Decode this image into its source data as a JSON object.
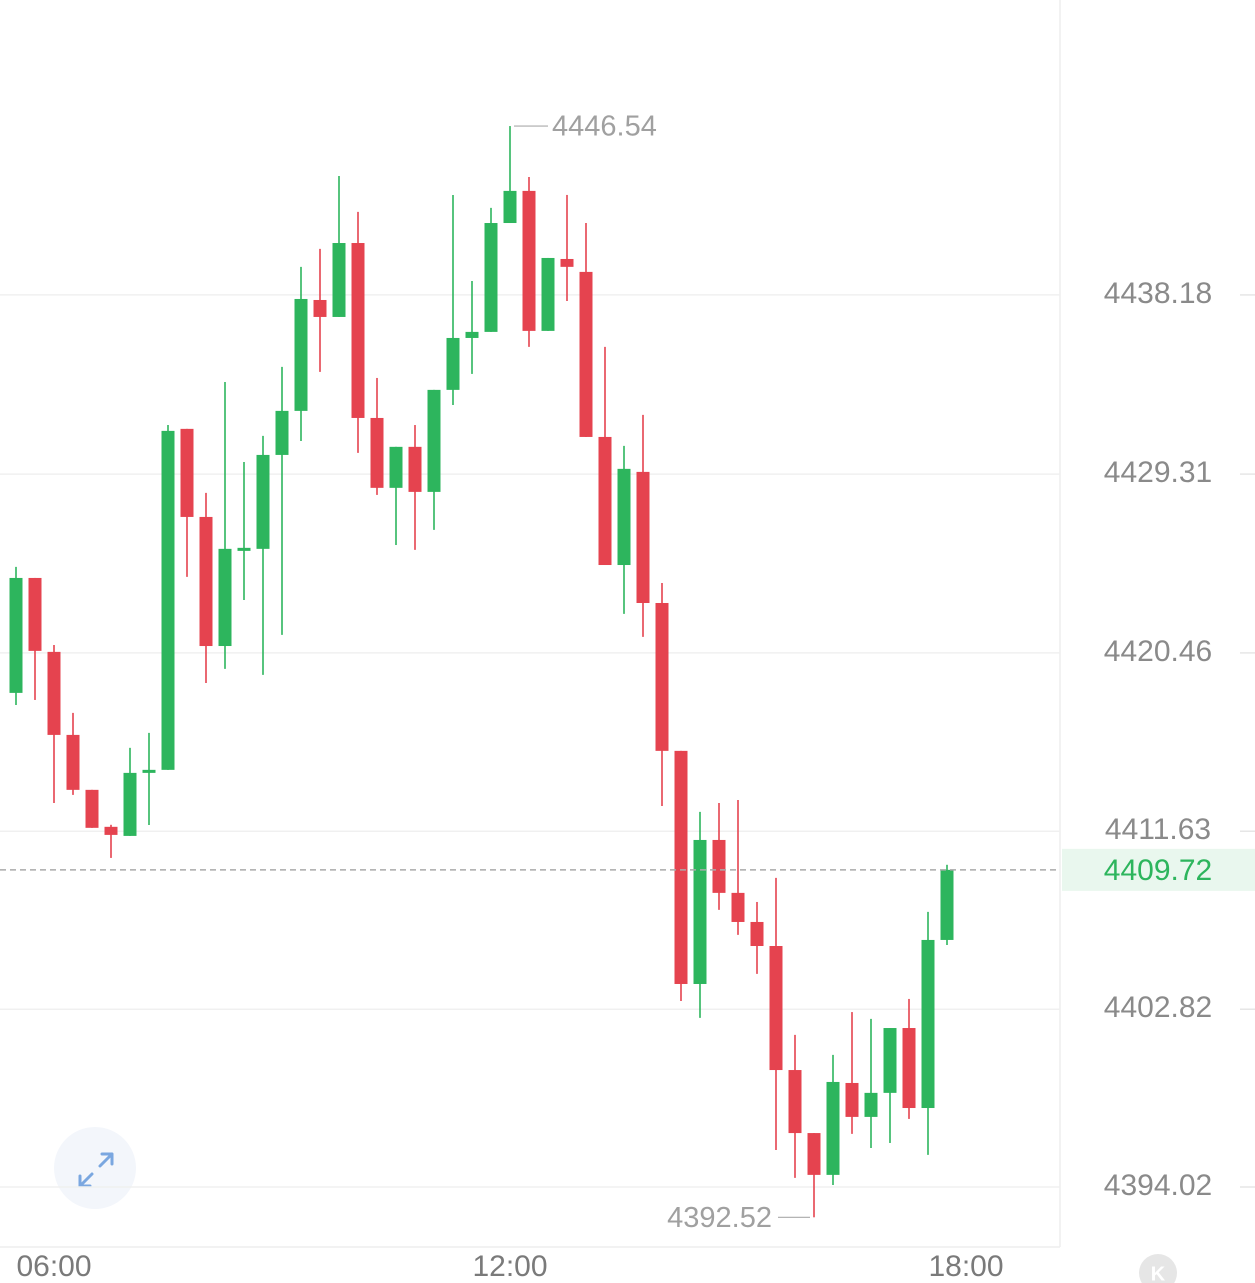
{
  "chart_data": {
    "type": "candlestick",
    "categories": [
      null,
      null,
      "06:00",
      null,
      null,
      null,
      null,
      null,
      null,
      null,
      null,
      null,
      null,
      null,
      null,
      null,
      null,
      null,
      null,
      null,
      null,
      null,
      null,
      null,
      null,
      null,
      "12:00",
      null,
      null,
      null,
      null,
      null,
      null,
      null,
      null,
      null,
      null,
      null,
      null,
      null,
      null,
      null,
      null,
      null,
      null,
      null,
      null,
      null,
      null,
      null,
      "18:00"
    ],
    "series": [
      {
        "up_color": "#2db55d",
        "down_color": "#e5434f",
        "open": [
          4418.48,
          4424.17,
          4420.51,
          4416.4,
          4413.68,
          4411.85,
          4411.4,
          4414.52,
          4414.67,
          4431.55,
          4427.19,
          4420.8,
          4425.51,
          4425.61,
          4430.26,
          4432.44,
          4437.93,
          4437.09,
          4440.75,
          4432.09,
          4428.63,
          4430.66,
          4428.43,
          4433.48,
          4436.05,
          4436.35,
          4441.74,
          4443.33,
          4436.4,
          4439.96,
          4439.32,
          4431.15,
          4424.81,
          4429.42,
          4422.93,
          4415.61,
          4404.07,
          4411.2,
          4408.58,
          4407.14,
          4405.95,
          4399.81,
          4396.69,
          4394.62,
          4399.17,
          4397.49,
          4398.68,
          4401.89,
          4397.93,
          4406.25,
          null
        ],
        "high": [
          4424.72,
          4424.17,
          4420.85,
          4417.49,
          4413.68,
          4411.95,
          4415.76,
          4416.5,
          4431.74,
          4431.55,
          4428.38,
          4433.87,
          4429.91,
          4431.2,
          4434.62,
          4439.57,
          4440.46,
          4444.07,
          4442.29,
          4434.07,
          4430.66,
          4431.74,
          4433.48,
          4443.13,
          4438.87,
          4442.49,
          4446.54,
          4444.02,
          4440.01,
          4443.13,
          4441.74,
          4435.61,
          4430.71,
          4432.24,
          4423.92,
          4415.61,
          4412.59,
          4413.03,
          4413.18,
          4408.13,
          4409.32,
          4401.55,
          4396.69,
          4400.56,
          4402.68,
          4402.34,
          4401.89,
          4403.33,
          4407.64,
          4409.97,
          null
        ],
        "low": [
          4417.88,
          4418.13,
          4413.03,
          4413.43,
          4411.8,
          4410.31,
          4411.4,
          4411.94,
          4414.67,
          4424.22,
          4418.97,
          4419.67,
          4423.08,
          4419.37,
          4421.35,
          4430.95,
          4434.37,
          4437.09,
          4430.36,
          4428.28,
          4425.8,
          4425.56,
          4426.55,
          4432.73,
          4434.27,
          4436.35,
          4441.74,
          4435.61,
          4436.4,
          4437.88,
          4431.15,
          4424.81,
          4422.39,
          4421.25,
          4412.88,
          4403.23,
          4402.39,
          4407.74,
          4406.5,
          4404.57,
          4395.85,
          4394.47,
          4392.52,
          4394.12,
          4396.65,
          4395.95,
          4396.2,
          4397.39,
          4395.61,
          4406.0,
          null
        ],
        "close": [
          4424.17,
          4420.56,
          4416.4,
          4413.68,
          4411.8,
          4411.45,
          4414.52,
          4414.67,
          4431.45,
          4427.19,
          4420.8,
          4425.61,
          4425.66,
          4430.26,
          4432.44,
          4437.98,
          4437.09,
          4440.75,
          4432.09,
          4428.63,
          4430.66,
          4428.43,
          4433.48,
          4436.05,
          4436.35,
          4441.74,
          4443.33,
          4436.4,
          4440.01,
          4439.57,
          4431.15,
          4424.81,
          4429.57,
          4422.93,
          4415.61,
          4404.07,
          4411.2,
          4408.58,
          4407.14,
          4405.95,
          4399.81,
          4396.69,
          4394.62,
          4399.22,
          4397.49,
          4398.68,
          4401.89,
          4397.93,
          4406.25,
          4409.72,
          null
        ]
      }
    ],
    "ylim": [
      4391.05,
      4452.78
    ],
    "yticks": [
      4438.18,
      4429.31,
      4420.46,
      4411.63,
      4402.82,
      4394.02
    ],
    "grid": true,
    "max_label": 4446.54,
    "min_label": 4392.52,
    "last_price": 4409.72,
    "badge": "K"
  }
}
